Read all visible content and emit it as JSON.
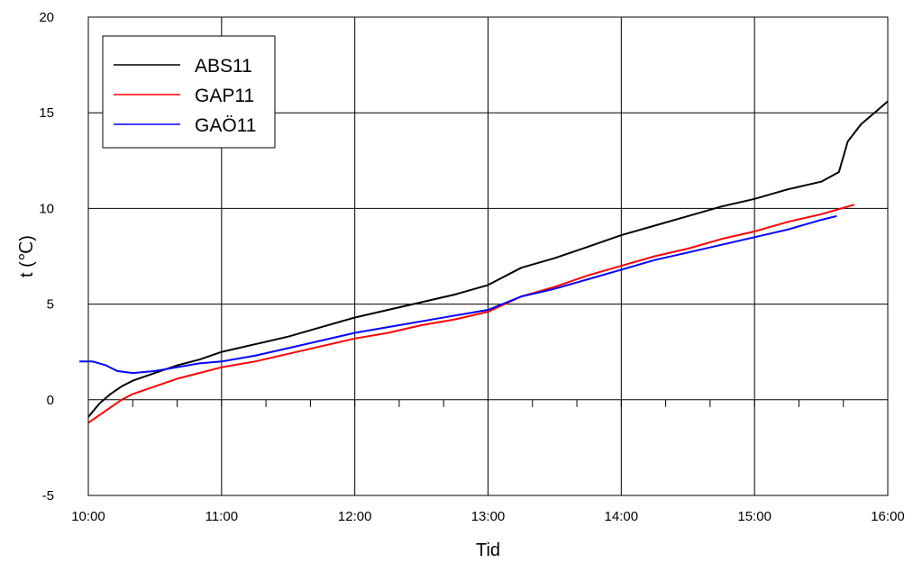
{
  "chart_data": {
    "type": "line",
    "xlabel": "Tid",
    "ylabel": "t (℃)",
    "x_ticks": [
      "10:00",
      "11:00",
      "12:00",
      "13:00",
      "14:00",
      "15:00",
      "16:00"
    ],
    "y_ticks": [
      -5,
      0,
      5,
      10,
      15,
      20
    ],
    "xlim": [
      "10:00",
      "16:00"
    ],
    "ylim": [
      -5,
      20
    ],
    "grid": true,
    "legend_position": "top-left",
    "series": [
      {
        "name": "ABS11",
        "color": "#000000",
        "points": [
          [
            "10:00",
            -0.9
          ],
          [
            "10:05",
            -0.2
          ],
          [
            "10:10",
            0.3
          ],
          [
            "10:15",
            0.7
          ],
          [
            "10:20",
            1.0
          ],
          [
            "10:30",
            1.4
          ],
          [
            "10:40",
            1.8
          ],
          [
            "10:50",
            2.1
          ],
          [
            "11:00",
            2.5
          ],
          [
            "11:15",
            2.9
          ],
          [
            "11:30",
            3.3
          ],
          [
            "11:45",
            3.8
          ],
          [
            "12:00",
            4.3
          ],
          [
            "12:15",
            4.7
          ],
          [
            "12:30",
            5.1
          ],
          [
            "12:45",
            5.5
          ],
          [
            "13:00",
            6.0
          ],
          [
            "13:15",
            6.9
          ],
          [
            "13:30",
            7.4
          ],
          [
            "13:45",
            8.0
          ],
          [
            "14:00",
            8.6
          ],
          [
            "14:15",
            9.1
          ],
          [
            "14:30",
            9.6
          ],
          [
            "14:45",
            10.1
          ],
          [
            "15:00",
            10.5
          ],
          [
            "15:15",
            11.0
          ],
          [
            "15:30",
            11.4
          ],
          [
            "15:38",
            11.9
          ],
          [
            "15:42",
            13.5
          ],
          [
            "15:48",
            14.4
          ],
          [
            "15:55",
            15.1
          ],
          [
            "16:00",
            15.6
          ]
        ]
      },
      {
        "name": "GAP11",
        "color": "#ff0000",
        "points": [
          [
            "10:00",
            -1.2
          ],
          [
            "10:05",
            -0.8
          ],
          [
            "10:10",
            -0.4
          ],
          [
            "10:15",
            0.0
          ],
          [
            "10:20",
            0.3
          ],
          [
            "10:30",
            0.7
          ],
          [
            "10:40",
            1.1
          ],
          [
            "10:50",
            1.4
          ],
          [
            "11:00",
            1.7
          ],
          [
            "11:15",
            2.0
          ],
          [
            "11:30",
            2.4
          ],
          [
            "11:45",
            2.8
          ],
          [
            "12:00",
            3.2
          ],
          [
            "12:15",
            3.5
          ],
          [
            "12:30",
            3.9
          ],
          [
            "12:45",
            4.2
          ],
          [
            "13:00",
            4.6
          ],
          [
            "13:15",
            5.4
          ],
          [
            "13:30",
            5.9
          ],
          [
            "13:45",
            6.5
          ],
          [
            "14:00",
            7.0
          ],
          [
            "14:15",
            7.5
          ],
          [
            "14:30",
            7.9
          ],
          [
            "14:45",
            8.4
          ],
          [
            "15:00",
            8.8
          ],
          [
            "15:15",
            9.3
          ],
          [
            "15:30",
            9.7
          ],
          [
            "15:45",
            10.2
          ]
        ]
      },
      {
        "name": "GAÖ11",
        "color": "#0000ff",
        "points": [
          [
            "09:56",
            2.0
          ],
          [
            "10:02",
            2.0
          ],
          [
            "10:08",
            1.8
          ],
          [
            "10:13",
            1.5
          ],
          [
            "10:20",
            1.4
          ],
          [
            "10:30",
            1.5
          ],
          [
            "10:40",
            1.7
          ],
          [
            "10:50",
            1.9
          ],
          [
            "11:00",
            2.0
          ],
          [
            "11:15",
            2.3
          ],
          [
            "11:30",
            2.7
          ],
          [
            "11:45",
            3.1
          ],
          [
            "12:00",
            3.5
          ],
          [
            "12:15",
            3.8
          ],
          [
            "12:30",
            4.1
          ],
          [
            "12:45",
            4.4
          ],
          [
            "13:00",
            4.7
          ],
          [
            "13:15",
            5.4
          ],
          [
            "13:30",
            5.8
          ],
          [
            "13:45",
            6.3
          ],
          [
            "14:00",
            6.8
          ],
          [
            "14:15",
            7.3
          ],
          [
            "14:30",
            7.7
          ],
          [
            "14:45",
            8.1
          ],
          [
            "15:00",
            8.5
          ],
          [
            "15:15",
            8.9
          ],
          [
            "15:30",
            9.4
          ],
          [
            "15:37",
            9.6
          ]
        ]
      }
    ]
  }
}
